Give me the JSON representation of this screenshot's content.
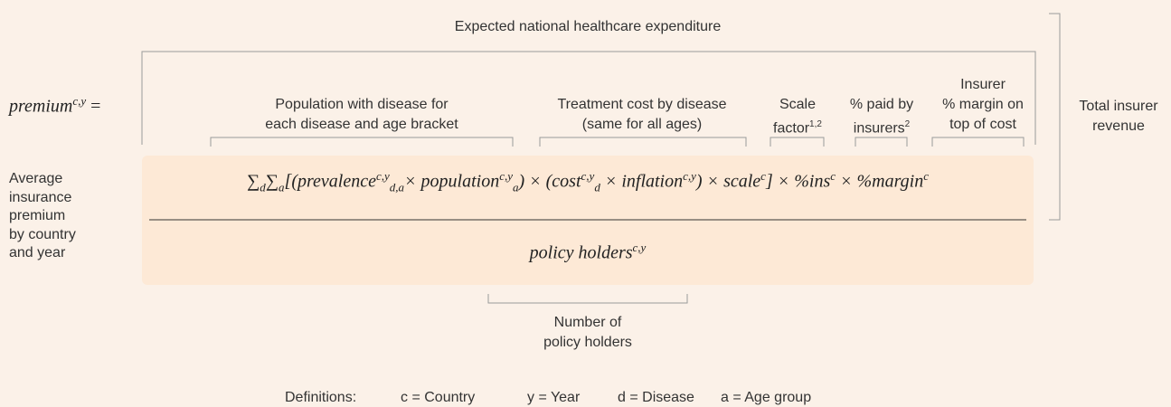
{
  "header": "Expected national healthcare expenditure",
  "lhs": {
    "t": "premium",
    "sup": "c,y",
    "op": "="
  },
  "left_label": [
    "Average",
    "insurance",
    "premium",
    "by country",
    "and year"
  ],
  "components": [
    {
      "lines": [
        "Population with disease for",
        "each disease and age bracket"
      ]
    },
    {
      "lines": [
        "Treatment cost by disease",
        "(same for all ages)"
      ]
    },
    {
      "lines": [
        "Scale",
        "factor"
      ],
      "sup": "1,2"
    },
    {
      "lines": [
        "% paid by",
        "insurers"
      ],
      "sup": "2"
    },
    {
      "lines": [
        "Insurer",
        "% margin on",
        "top of cost"
      ]
    }
  ],
  "right_label": [
    "Total insurer",
    "revenue"
  ],
  "numerator": [
    {
      "t": "∑",
      "sub": "d"
    },
    {
      "t": "∑",
      "sub": "a"
    },
    {
      "t": "[(prevalence",
      "sup": "c,y",
      "sub": "d,a"
    },
    {
      "t": "× population",
      "sup": "c,y",
      "sub": "a"
    },
    {
      "t": ") × (cost",
      "sup": "c,y",
      "sub": "d"
    },
    {
      "t": " × inflation",
      "sup": "c,y"
    },
    {
      "t": ") × scale",
      "sup": "c"
    },
    {
      "t": "] × %ins",
      "sup": "c"
    },
    {
      "t": " × %margin",
      "sup": "c"
    }
  ],
  "denominator": [
    {
      "t": "policy holders",
      "sup": "c,y"
    }
  ],
  "bottom_label": [
    "Number of",
    "policy holders"
  ],
  "definitions": {
    "label": "Definitions:",
    "items": [
      "c = Country",
      "y = Year",
      "d = Disease",
      "a = Age group"
    ]
  }
}
